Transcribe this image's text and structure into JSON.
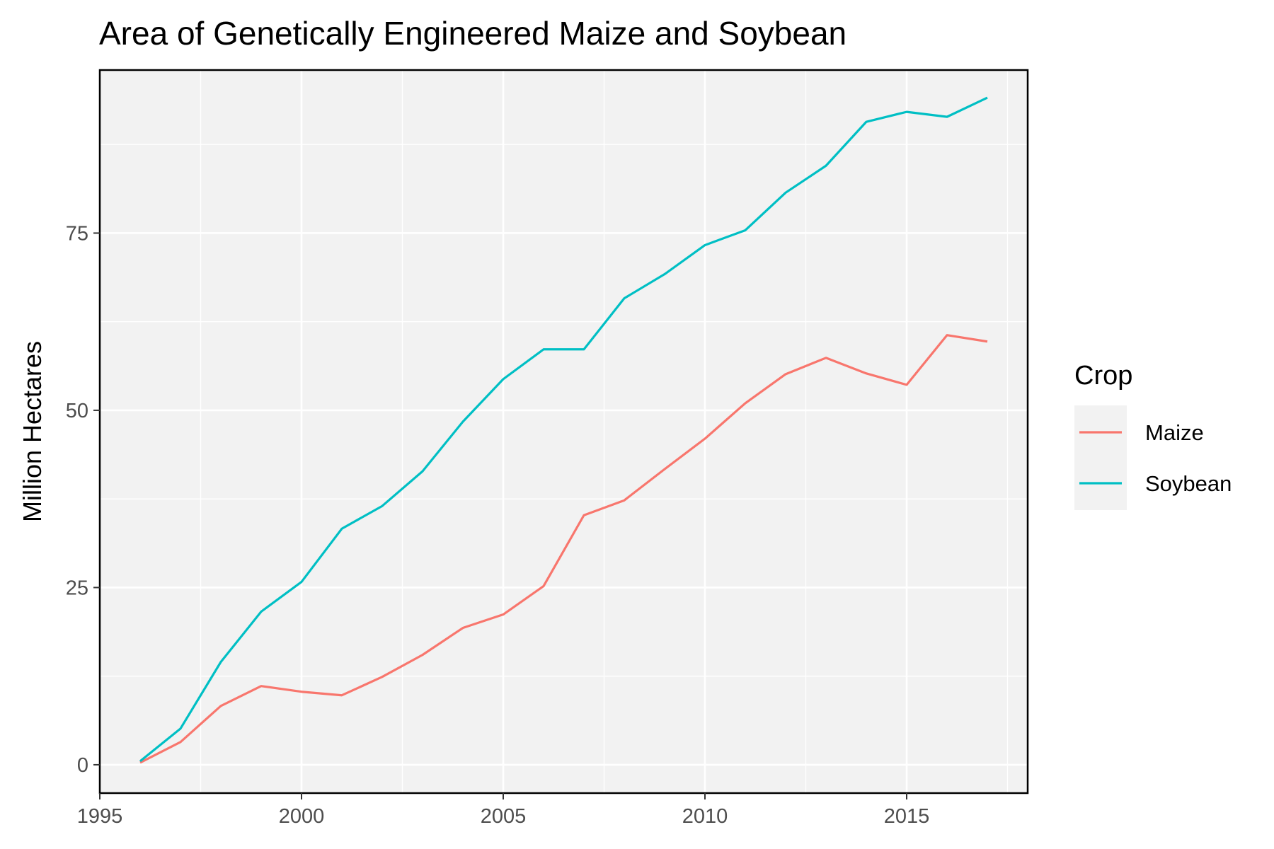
{
  "chart_data": {
    "type": "line",
    "title": "Area of Genetically Engineered Maize and Soybean",
    "xlabel": "",
    "ylabel": "Million Hectares",
    "xlim": [
      1995,
      2018
    ],
    "ylim": [
      -4,
      98
    ],
    "x_ticks": [
      1995,
      2000,
      2005,
      2010,
      2015
    ],
    "x_tick_labels": [
      "1995",
      "2000",
      "2005",
      "2010",
      "2015"
    ],
    "y_ticks": [
      0,
      25,
      50,
      75
    ],
    "y_tick_labels": [
      "0",
      "25",
      "50",
      "75"
    ],
    "grid": true,
    "legend": {
      "title": "Crop",
      "placement": "right"
    },
    "x": [
      1996,
      1997,
      1998,
      1999,
      2000,
      2001,
      2002,
      2003,
      2004,
      2005,
      2006,
      2007,
      2008,
      2009,
      2010,
      2011,
      2012,
      2013,
      2014,
      2015,
      2016,
      2017
    ],
    "series": [
      {
        "name": "Maize",
        "color": "#F8766D",
        "values": [
          0.3,
          3.2,
          8.3,
          11.1,
          10.3,
          9.8,
          12.4,
          15.5,
          19.3,
          21.2,
          25.2,
          35.2,
          37.3,
          41.7,
          46.0,
          51.0,
          55.1,
          57.4,
          55.2,
          53.6,
          60.6,
          59.7
        ]
      },
      {
        "name": "Soybean",
        "color": "#00BFC4",
        "values": [
          0.5,
          5.1,
          14.5,
          21.6,
          25.8,
          33.3,
          36.5,
          41.4,
          48.4,
          54.4,
          58.6,
          58.6,
          65.8,
          69.2,
          73.3,
          75.4,
          80.7,
          84.5,
          90.7,
          92.1,
          91.4,
          94.1
        ]
      }
    ]
  }
}
